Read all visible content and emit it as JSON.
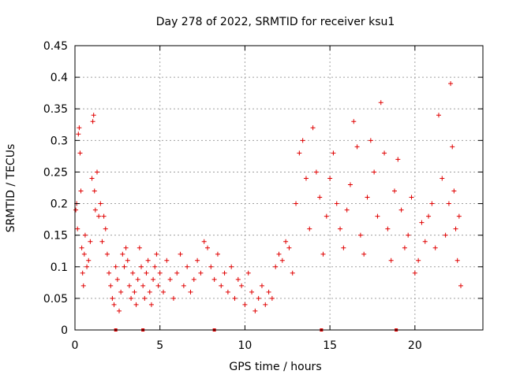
{
  "chart_data": {
    "type": "scatter",
    "title": "Day 278 of 2022, SRMTID for receiver ksu1",
    "xlabel": "GPS time / hours",
    "ylabel": "SRMTID / TECUs",
    "xlim": [
      0,
      24
    ],
    "ylim": [
      0,
      0.45
    ],
    "xticks": [
      0,
      5,
      10,
      15,
      20
    ],
    "xtick_labels": [
      "0",
      "5",
      "10",
      "15",
      "20"
    ],
    "yticks": [
      0,
      0.05,
      0.1,
      0.15,
      0.2,
      0.25,
      0.3,
      0.35,
      0.4,
      0.45
    ],
    "ytick_labels": [
      "0",
      "0.05",
      "0.1",
      "0.15",
      "0.2",
      "0.25",
      "0.3",
      "0.35",
      "0.4",
      "0.45"
    ],
    "grid": true,
    "legend": "none",
    "marker": "plus",
    "color": "#e00000",
    "series": [
      {
        "name": "SRMTID",
        "points": [
          [
            0.05,
            0.19
          ],
          [
            0.1,
            0.2
          ],
          [
            0.15,
            0.16
          ],
          [
            0.2,
            0.31
          ],
          [
            0.25,
            0.32
          ],
          [
            0.3,
            0.28
          ],
          [
            0.35,
            0.22
          ],
          [
            0.4,
            0.13
          ],
          [
            0.45,
            0.09
          ],
          [
            0.5,
            0.07
          ],
          [
            0.55,
            0.12
          ],
          [
            0.6,
            0.15
          ],
          [
            0.7,
            0.1
          ],
          [
            0.8,
            0.11
          ],
          [
            0.9,
            0.14
          ],
          [
            1.0,
            0.24
          ],
          [
            1.05,
            0.33
          ],
          [
            1.1,
            0.34
          ],
          [
            1.15,
            0.22
          ],
          [
            1.2,
            0.19
          ],
          [
            1.3,
            0.25
          ],
          [
            1.4,
            0.18
          ],
          [
            1.5,
            0.2
          ],
          [
            1.6,
            0.14
          ],
          [
            1.7,
            0.18
          ],
          [
            1.8,
            0.16
          ],
          [
            1.9,
            0.12
          ],
          [
            2.0,
            0.09
          ],
          [
            2.1,
            0.07
          ],
          [
            2.2,
            0.05
          ],
          [
            2.3,
            0.04
          ],
          [
            2.4,
            0.1
          ],
          [
            2.5,
            0.08
          ],
          [
            2.6,
            0.03
          ],
          [
            2.7,
            0.06
          ],
          [
            2.8,
            0.12
          ],
          [
            2.9,
            0.1
          ],
          [
            3.0,
            0.13
          ],
          [
            3.1,
            0.11
          ],
          [
            3.2,
            0.07
          ],
          [
            3.3,
            0.05
          ],
          [
            3.4,
            0.09
          ],
          [
            3.5,
            0.06
          ],
          [
            3.6,
            0.04
          ],
          [
            3.7,
            0.08
          ],
          [
            3.8,
            0.13
          ],
          [
            3.9,
            0.1
          ],
          [
            4.0,
            0.07
          ],
          [
            4.1,
            0.05
          ],
          [
            4.2,
            0.09
          ],
          [
            4.3,
            0.11
          ],
          [
            4.4,
            0.06
          ],
          [
            4.5,
            0.04
          ],
          [
            4.6,
            0.08
          ],
          [
            4.7,
            0.1
          ],
          [
            4.8,
            0.12
          ],
          [
            4.9,
            0.07
          ],
          [
            5.0,
            0.09
          ],
          [
            5.2,
            0.06
          ],
          [
            5.4,
            0.11
          ],
          [
            5.6,
            0.08
          ],
          [
            5.8,
            0.05
          ],
          [
            6.0,
            0.09
          ],
          [
            6.2,
            0.12
          ],
          [
            6.4,
            0.07
          ],
          [
            6.6,
            0.1
          ],
          [
            6.8,
            0.06
          ],
          [
            7.0,
            0.08
          ],
          [
            7.2,
            0.11
          ],
          [
            7.4,
            0.09
          ],
          [
            7.6,
            0.14
          ],
          [
            7.8,
            0.13
          ],
          [
            8.0,
            0.1
          ],
          [
            8.2,
            0.08
          ],
          [
            8.4,
            0.12
          ],
          [
            8.6,
            0.07
          ],
          [
            8.8,
            0.09
          ],
          [
            9.0,
            0.06
          ],
          [
            9.2,
            0.1
          ],
          [
            9.4,
            0.05
          ],
          [
            9.6,
            0.08
          ],
          [
            9.8,
            0.07
          ],
          [
            10.0,
            0.04
          ],
          [
            10.2,
            0.09
          ],
          [
            10.4,
            0.06
          ],
          [
            10.6,
            0.03
          ],
          [
            10.8,
            0.05
          ],
          [
            11.0,
            0.07
          ],
          [
            11.2,
            0.04
          ],
          [
            11.4,
            0.06
          ],
          [
            11.6,
            0.05
          ],
          [
            11.8,
            0.1
          ],
          [
            12.0,
            0.12
          ],
          [
            12.2,
            0.11
          ],
          [
            12.4,
            0.14
          ],
          [
            12.6,
            0.13
          ],
          [
            12.8,
            0.09
          ],
          [
            13.0,
            0.2
          ],
          [
            13.2,
            0.28
          ],
          [
            13.4,
            0.3
          ],
          [
            13.6,
            0.24
          ],
          [
            13.8,
            0.16
          ],
          [
            14.0,
            0.32
          ],
          [
            14.2,
            0.25
          ],
          [
            14.4,
            0.21
          ],
          [
            14.6,
            0.12
          ],
          [
            14.8,
            0.18
          ],
          [
            15.0,
            0.24
          ],
          [
            15.2,
            0.28
          ],
          [
            15.4,
            0.2
          ],
          [
            15.6,
            0.16
          ],
          [
            15.8,
            0.13
          ],
          [
            16.0,
            0.19
          ],
          [
            16.2,
            0.23
          ],
          [
            16.4,
            0.33
          ],
          [
            16.6,
            0.29
          ],
          [
            16.8,
            0.15
          ],
          [
            17.0,
            0.12
          ],
          [
            17.2,
            0.21
          ],
          [
            17.4,
            0.3
          ],
          [
            17.6,
            0.25
          ],
          [
            17.8,
            0.18
          ],
          [
            18.0,
            0.36
          ],
          [
            18.2,
            0.28
          ],
          [
            18.4,
            0.16
          ],
          [
            18.6,
            0.11
          ],
          [
            18.8,
            0.22
          ],
          [
            19.0,
            0.27
          ],
          [
            19.2,
            0.19
          ],
          [
            19.4,
            0.13
          ],
          [
            19.6,
            0.15
          ],
          [
            19.8,
            0.21
          ],
          [
            20.0,
            0.09
          ],
          [
            20.2,
            0.11
          ],
          [
            20.4,
            0.17
          ],
          [
            20.6,
            0.14
          ],
          [
            20.8,
            0.18
          ],
          [
            21.0,
            0.2
          ],
          [
            21.2,
            0.13
          ],
          [
            21.4,
            0.34
          ],
          [
            21.6,
            0.24
          ],
          [
            21.8,
            0.15
          ],
          [
            22.0,
            0.2
          ],
          [
            22.1,
            0.39
          ],
          [
            22.2,
            0.29
          ],
          [
            22.3,
            0.22
          ],
          [
            22.4,
            0.16
          ],
          [
            22.5,
            0.11
          ],
          [
            22.6,
            0.18
          ],
          [
            22.7,
            0.07
          ]
        ]
      }
    ],
    "baseline_markers": [
      2.4,
      4.0,
      8.2,
      14.5,
      18.9
    ]
  }
}
